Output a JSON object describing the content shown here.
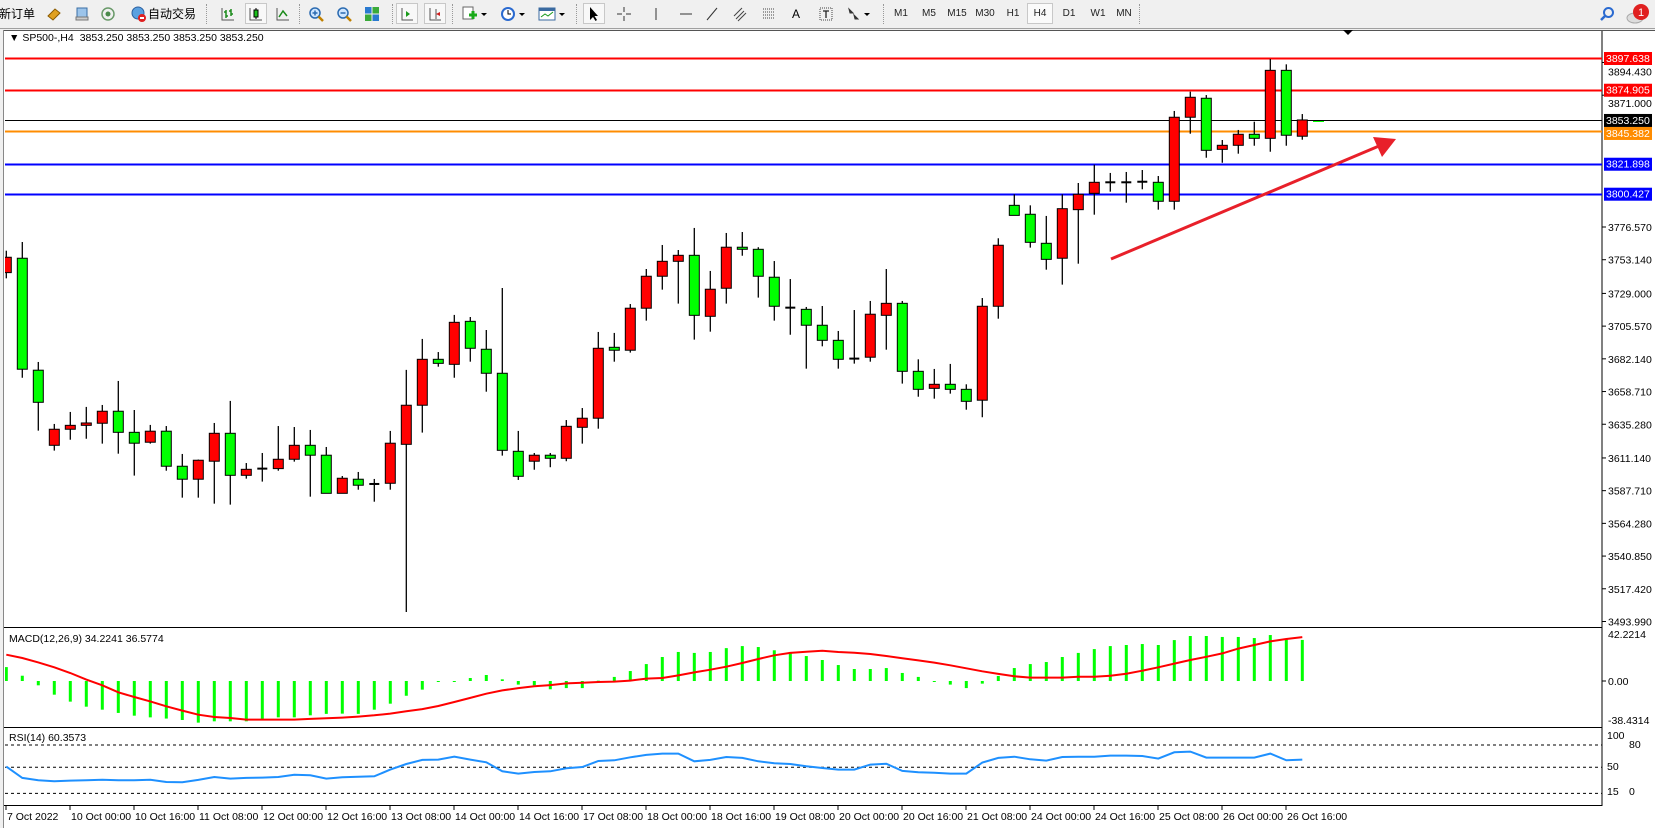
{
  "toolbar": {
    "new_order_label": "新订单",
    "auto_trading_label": "自动交易",
    "timeframes": [
      "M1",
      "M5",
      "M15",
      "M30",
      "H1",
      "H4",
      "D1",
      "W1",
      "MN"
    ],
    "active_timeframe": "H4",
    "notification_count": "1",
    "text_tool_label": "A"
  },
  "chart": {
    "symbol_period": "SP500-,H4",
    "ohlc_readout": "3853.250 3853.250 3853.250 3853.250",
    "bull_color": "#ff0000",
    "bear_color": "#00ff00",
    "candles": [
      [
        3743.9,
        3759.6,
        3739.8,
        3754.9
      ],
      [
        3754.2,
        3765.8,
        3668.6,
        3674.7
      ],
      [
        3674.0,
        3679.9,
        3630.7,
        3651.0
      ],
      [
        3620.2,
        3635.5,
        3616.4,
        3631.7
      ],
      [
        3631.7,
        3644.1,
        3624.2,
        3634.5
      ],
      [
        3634.5,
        3647.7,
        3624.9,
        3636.2
      ],
      [
        3636.0,
        3649.1,
        3621.4,
        3644.6
      ],
      [
        3644.6,
        3666.3,
        3614.2,
        3629.5
      ],
      [
        3629.5,
        3645.5,
        3598.5,
        3621.7
      ],
      [
        3622.4,
        3634.8,
        3621.4,
        3630.3
      ],
      [
        3630.3,
        3634.0,
        3602.0,
        3605.2
      ],
      [
        3605.2,
        3614.0,
        3582.7,
        3595.9
      ],
      [
        3595.9,
        3610.0,
        3582.7,
        3609.5
      ],
      [
        3608.8,
        3636.2,
        3578.4,
        3628.8
      ],
      [
        3628.8,
        3652.0,
        3577.7,
        3598.7
      ],
      [
        3598.7,
        3607.5,
        3596.3,
        3603.0
      ],
      [
        3603.5,
        3614.7,
        3594.2,
        3603.5
      ],
      [
        3603.5,
        3634.0,
        3602.0,
        3610.2
      ],
      [
        3610.2,
        3633.3,
        3608.5,
        3620.2
      ],
      [
        3620.2,
        3631.2,
        3583.4,
        3613.1
      ],
      [
        3613.1,
        3619.0,
        3585.8,
        3585.8
      ],
      [
        3585.8,
        3598.2,
        3585.8,
        3596.6
      ],
      [
        3595.9,
        3601.1,
        3588.4,
        3591.6
      ],
      [
        3592.5,
        3596.1,
        3579.8,
        3592.5
      ],
      [
        3593.0,
        3630.5,
        3588.4,
        3621.7
      ],
      [
        3620.9,
        3674.2,
        3500.8,
        3648.9
      ],
      [
        3648.9,
        3696.4,
        3629.3,
        3681.8
      ],
      [
        3681.8,
        3687.0,
        3676.5,
        3678.9
      ],
      [
        3678.2,
        3713.6,
        3668.6,
        3708.3
      ],
      [
        3709.0,
        3712.1,
        3680.1,
        3689.7
      ],
      [
        3689.0,
        3702.8,
        3658.6,
        3671.8
      ],
      [
        3671.8,
        3732.9,
        3612.8,
        3616.6
      ],
      [
        3615.9,
        3630.5,
        3595.4,
        3598.0
      ],
      [
        3608.8,
        3614.7,
        3602.7,
        3613.1
      ],
      [
        3613.1,
        3614.7,
        3604.5,
        3610.9
      ],
      [
        3610.9,
        3638.3,
        3608.8,
        3633.8
      ],
      [
        3633.1,
        3646.9,
        3621.4,
        3639.6
      ],
      [
        3639.6,
        3701.4,
        3632.1,
        3689.7
      ],
      [
        3690.4,
        3700.7,
        3680.1,
        3688.3
      ],
      [
        3688.3,
        3721.4,
        3686.6,
        3718.4
      ],
      [
        3718.4,
        3746.5,
        3709.5,
        3741.3
      ],
      [
        3741.3,
        3763.7,
        3731.7,
        3752.0
      ],
      [
        3752.0,
        3760.1,
        3721.7,
        3756.3
      ],
      [
        3756.3,
        3775.9,
        3695.9,
        3713.3
      ],
      [
        3712.6,
        3745.1,
        3701.6,
        3732.0
      ],
      [
        3732.7,
        3772.3,
        3721.7,
        3762.1
      ],
      [
        3762.1,
        3773.0,
        3756.0,
        3760.6
      ],
      [
        3760.6,
        3762.1,
        3726.0,
        3741.3
      ],
      [
        3740.6,
        3752.2,
        3709.5,
        3719.8
      ],
      [
        3718.8,
        3739.3,
        3699.4,
        3718.8
      ],
      [
        3717.6,
        3719.3,
        3675.1,
        3706.2
      ],
      [
        3706.2,
        3720.0,
        3691.1,
        3695.4
      ],
      [
        3695.4,
        3702.1,
        3675.1,
        3681.8
      ],
      [
        3682.3,
        3717.1,
        3678.7,
        3682.3
      ],
      [
        3683.3,
        3723.6,
        3680.1,
        3714.1
      ],
      [
        3713.3,
        3746.5,
        3688.7,
        3721.9
      ],
      [
        3721.9,
        3723.6,
        3664.4,
        3673.2
      ],
      [
        3673.2,
        3681.8,
        3655.0,
        3660.3
      ],
      [
        3661.0,
        3674.9,
        3653.6,
        3663.9
      ],
      [
        3663.9,
        3678.5,
        3657.2,
        3660.3
      ],
      [
        3660.3,
        3663.9,
        3645.7,
        3651.7
      ],
      [
        3652.5,
        3725.7,
        3640.3,
        3719.8
      ],
      [
        3719.8,
        3768.5,
        3710.9,
        3763.5
      ],
      [
        3792.1,
        3800.0,
        3784.9,
        3784.9
      ],
      [
        3785.7,
        3792.1,
        3761.8,
        3765.6
      ],
      [
        3764.9,
        3784.5,
        3746.0,
        3753.4
      ],
      [
        3754.2,
        3800.0,
        3735.3,
        3789.7
      ],
      [
        3789.0,
        3808.1,
        3750.3,
        3800.0
      ],
      [
        3800.7,
        3821.2,
        3785.4,
        3808.6
      ],
      [
        3808.6,
        3815.3,
        3801.9,
        3808.6
      ],
      [
        3808.6,
        3816.0,
        3794.0,
        3808.6
      ],
      [
        3809.0,
        3817.4,
        3803.6,
        3809.0
      ],
      [
        3808.6,
        3813.1,
        3789.0,
        3795.0
      ],
      [
        3795.0,
        3859.7,
        3789.0,
        3855.2
      ],
      [
        3855.2,
        3873.5,
        3843.4,
        3869.5
      ],
      [
        3868.8,
        3871.1,
        3826.2,
        3831.5
      ],
      [
        3832.2,
        3838.9,
        3822.6,
        3835.1
      ],
      [
        3835.1,
        3846.1,
        3829.1,
        3843.0
      ],
      [
        3843.0,
        3852.0,
        3834.8,
        3840.1
      ],
      [
        3840.1,
        3896.9,
        3830.5,
        3888.8
      ],
      [
        3888.8,
        3893.1,
        3834.8,
        3842.3
      ],
      [
        3841.6,
        3857.5,
        3839.1,
        3853.25
      ]
    ],
    "levels": [
      {
        "price": "3897.638",
        "color": "#ff0000"
      },
      {
        "price": "3874.905",
        "color": "#ff0000"
      },
      {
        "price": "3853.250",
        "color": "#000000"
      },
      {
        "price": "3845.382",
        "color": "#ff8c00"
      },
      {
        "price": "3821.898",
        "color": "#0000ff"
      },
      {
        "price": "3800.427",
        "color": "#0000ff"
      }
    ],
    "arrow_color": "#e8202a",
    "price_ticks": [
      "3894.430",
      "3871.000",
      "3776.570",
      "3753.140",
      "3729.000",
      "3705.570",
      "3682.140",
      "3658.710",
      "3635.280",
      "3611.140",
      "3587.710",
      "3564.280",
      "3540.850",
      "3517.420",
      "3493.990"
    ]
  },
  "macd": {
    "label": "MACD(12,26,9) 34.2241 36.5774",
    "axis_labels": [
      "42.2214",
      "0.00",
      "-38.4314"
    ],
    "histogram_color": "#00ff00",
    "signal_color": "#ff0000",
    "histogram": [
      11.6,
      4.4,
      -3.6,
      -11.4,
      -17.2,
      -21.4,
      -23.9,
      -26.6,
      -28.9,
      -30.3,
      -31.3,
      -32.5,
      -34.7,
      -33.6,
      -33.6,
      -33.6,
      -31.6,
      -30.3,
      -30.3,
      -28.6,
      -27.4,
      -27.2,
      -27.4,
      -23.9,
      -18.9,
      -12.3,
      -7.2,
      -0.8,
      -0.3,
      2.5,
      5.0,
      1.4,
      -3.0,
      -3.6,
      -6.9,
      -5.9,
      -5.9,
      0.3,
      3.4,
      8.3,
      14.1,
      20.0,
      24.2,
      23.4,
      24.2,
      27.4,
      29.1,
      28.3,
      25.6,
      24.2,
      20.8,
      17.5,
      13.3,
      10.0,
      10.0,
      10.8,
      6.7,
      3.4,
      -0.3,
      -3.0,
      -5.9,
      -2.2,
      4.2,
      10.8,
      14.1,
      15.8,
      20.0,
      23.4,
      26.6,
      29.1,
      30.0,
      30.8,
      30.0,
      34.1,
      37.5,
      37.5,
      36.7,
      36.7,
      35.8,
      38.3,
      35.0,
      34.2241
    ],
    "signal": [
      21.9,
      19.2,
      15.5,
      11.4,
      6.7,
      1.2,
      -3.6,
      -9.4,
      -13.3,
      -17.0,
      -21.1,
      -24.7,
      -28.1,
      -30.0,
      -30.8,
      -32.2,
      -32.2,
      -32.2,
      -32.2,
      -31.6,
      -31.1,
      -30.5,
      -29.7,
      -28.6,
      -27.2,
      -25.2,
      -23.4,
      -20.8,
      -17.5,
      -14.1,
      -10.6,
      -7.8,
      -5.9,
      -4.4,
      -3.4,
      -2.0,
      -1.4,
      -0.8,
      -0.5,
      0.3,
      2.0,
      2.5,
      4.7,
      7.2,
      9.4,
      11.9,
      15.0,
      18.3,
      21.4,
      23.4,
      24.4,
      25.2,
      24.2,
      23.6,
      22.5,
      20.8,
      18.9,
      17.2,
      15.3,
      13.1,
      10.6,
      8.1,
      5.9,
      3.9,
      2.8,
      2.8,
      2.8,
      3.6,
      3.6,
      4.4,
      6.1,
      8.6,
      11.4,
      14.5,
      17.5,
      20.2,
      23.0,
      27.0,
      30.0,
      33.0,
      35.0,
      36.5774
    ]
  },
  "rsi": {
    "label": "RSI(14) 60.3573",
    "axis_labels": [
      "100",
      "80",
      "50",
      "15",
      "0"
    ],
    "line_color": "#1e90ff",
    "values": [
      50.9,
      35.7,
      32.5,
      31.2,
      32.1,
      32.5,
      33.4,
      32.5,
      32.5,
      33.4,
      30.3,
      29.8,
      33.0,
      37.0,
      34.8,
      35.7,
      36.1,
      37.0,
      40.1,
      39.2,
      34.8,
      36.5,
      37.4,
      37.9,
      46.9,
      54.5,
      59.9,
      60.3,
      64.3,
      60.3,
      56.7,
      44.6,
      41.5,
      43.7,
      44.6,
      48.7,
      50.4,
      58.5,
      59.4,
      63.5,
      66.6,
      68.4,
      68.4,
      58.1,
      59.9,
      63.9,
      62.6,
      58.1,
      55.4,
      54.5,
      51.3,
      49.1,
      46.9,
      46.9,
      53.6,
      54.9,
      45.1,
      43.3,
      42.8,
      41.5,
      41.5,
      56.3,
      62.6,
      64.3,
      60.8,
      59.0,
      63.9,
      64.3,
      64.3,
      65.7,
      65.7,
      65.2,
      61.7,
      70.2,
      71.1,
      63.0,
      63.0,
      63.0,
      63.0,
      68.4,
      59.4,
      60.3573
    ]
  },
  "time_axis": {
    "labels": [
      "7 Oct 2022",
      "10 Oct 00:00",
      "10 Oct 16:00",
      "11 Oct 08:00",
      "12 Oct 00:00",
      "12 Oct 16:00",
      "13 Oct 08:00",
      "14 Oct 00:00",
      "14 Oct 16:00",
      "17 Oct 08:00",
      "18 Oct 00:00",
      "18 Oct 16:00",
      "19 Oct 08:00",
      "20 Oct 00:00",
      "20 Oct 16:00",
      "21 Oct 08:00",
      "24 Oct 00:00",
      "24 Oct 16:00",
      "25 Oct 08:00",
      "26 Oct 00:00",
      "26 Oct 16:00"
    ]
  }
}
